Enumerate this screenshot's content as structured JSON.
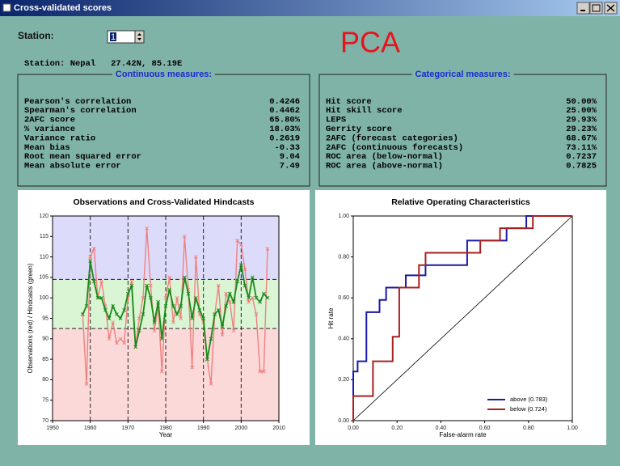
{
  "window": {
    "title": "Cross-validated scores"
  },
  "station": {
    "label": "Station:",
    "value": "1",
    "info": "Station: Nepal   27.42N, 85.19E"
  },
  "overlay": "PCA",
  "continuous": {
    "title": "Continuous measures:",
    "rows": [
      [
        "Pearson's correlation",
        "0.4246"
      ],
      [
        "Spearman's correlation",
        "0.4462"
      ],
      [
        "2AFC score",
        "65.80%"
      ],
      [
        "% variance",
        "18.03%"
      ],
      [
        "Variance ratio",
        "0.2619"
      ],
      [
        "Mean bias",
        "-0.33"
      ],
      [
        "Root mean squared error",
        "9.04"
      ],
      [
        "Mean absolute error",
        "7.49"
      ]
    ]
  },
  "categorical": {
    "title": "Categorical measures:",
    "rows": [
      [
        "Hit score",
        "50.00%"
      ],
      [
        "Hit skill score",
        "25.00%"
      ],
      [
        "LEPS",
        "29.93%"
      ],
      [
        "Gerrity score",
        "29.23%"
      ],
      [
        "2AFC (forecast categories)",
        "68.67%"
      ],
      [
        "2AFC (continuous forecasts)",
        "73.11%"
      ],
      [
        "ROC area (below-normal)",
        "0.7237"
      ],
      [
        "ROC area (above-normal)",
        "0.7825"
      ]
    ]
  },
  "chart_data": [
    {
      "type": "line",
      "title": "Observations and Cross-Validated Hindcasts",
      "xlabel": "Year",
      "ylabel": "Observations (red) / Hindcasts (green)",
      "x": [
        1958,
        1959,
        1960,
        1961,
        1962,
        1963,
        1964,
        1965,
        1966,
        1967,
        1968,
        1969,
        1970,
        1971,
        1972,
        1973,
        1974,
        1975,
        1976,
        1977,
        1978,
        1979,
        1980,
        1981,
        1982,
        1983,
        1984,
        1985,
        1986,
        1987,
        1988,
        1989,
        1990,
        1991,
        1992,
        1993,
        1994,
        1995,
        1996,
        1997,
        1998,
        1999,
        2000,
        2001,
        2002,
        2003,
        2004,
        2005,
        2006,
        2007
      ],
      "xlim": [
        1950,
        2010
      ],
      "xticks": [
        1950,
        1960,
        1970,
        1980,
        1990,
        2000,
        2010
      ],
      "ylim": [
        70,
        120
      ],
      "yticks": [
        70,
        75,
        80,
        85,
        90,
        95,
        100,
        105,
        110,
        115,
        120
      ],
      "thresholds": [
        92.5,
        104.5
      ],
      "band_colors": [
        "#fcd9d9",
        "#d9f5d3",
        "#dcdcfa"
      ],
      "vgrid": true,
      "series": [
        {
          "color": "#f08080",
          "marker": true,
          "values": [
            96,
            79,
            110,
            112,
            100,
            104,
            98,
            90,
            94,
            89,
            90,
            89,
            100,
            104,
            88,
            95,
            100,
            117,
            103,
            92,
            98,
            82,
            100,
            105,
            94,
            100,
            95,
            115,
            102,
            83,
            110,
            96,
            94,
            85,
            79,
            96,
            103,
            91,
            101,
            99,
            92,
            114,
            113,
            107,
            99,
            100,
            96,
            82,
            82,
            112
          ]
        },
        {
          "color": "#1a8a1a",
          "marker": true,
          "values": [
            96,
            98,
            109,
            104,
            100,
            100,
            97,
            95,
            98,
            96,
            95,
            97,
            101,
            103,
            88,
            92,
            96,
            103,
            100,
            94,
            99,
            90,
            98,
            102,
            98,
            96,
            98,
            105,
            101,
            95,
            100,
            97,
            95,
            85,
            90,
            96,
            97,
            93,
            98,
            101,
            99,
            104,
            108,
            103,
            100,
            105,
            100,
            99,
            101,
            100
          ]
        }
      ]
    },
    {
      "type": "line",
      "title": "Relative Operating Characteristics",
      "xlabel": "False-alarm rate",
      "ylabel": "Hit rate",
      "xlim": [
        0,
        1
      ],
      "ylim": [
        0,
        1
      ],
      "xticks": [
        {
          "value": 0,
          "label": "0.00"
        },
        {
          "value": 0.2,
          "label": "0.20"
        },
        {
          "value": 0.4,
          "label": "0.40"
        },
        {
          "value": 0.6,
          "label": "0.60"
        },
        {
          "value": 0.8,
          "label": "0.80"
        },
        {
          "value": 1,
          "label": "1.00"
        }
      ],
      "yticks": [
        {
          "value": 0,
          "label": "0.00"
        },
        {
          "value": 0.2,
          "label": "0.20"
        },
        {
          "value": 0.4,
          "label": "0.40"
        },
        {
          "value": 0.6,
          "label": "0.60"
        },
        {
          "value": 0.8,
          "label": "0.80"
        },
        {
          "value": 1,
          "label": "1.00"
        }
      ],
      "diagonal": true,
      "legend": "lower right",
      "series": [
        {
          "name": "above (0.783)",
          "color": "#1a1aa8",
          "x": [
            0,
            0,
            0.02,
            0.02,
            0.06,
            0.06,
            0.12,
            0.12,
            0.15,
            0.15,
            0.24,
            0.24,
            0.33,
            0.33,
            0.52,
            0.52,
            0.7,
            0.7,
            0.79,
            0.79,
            1
          ],
          "values": [
            0,
            0.24,
            0.24,
            0.29,
            0.29,
            0.53,
            0.53,
            0.59,
            0.59,
            0.65,
            0.65,
            0.71,
            0.71,
            0.76,
            0.76,
            0.88,
            0.88,
            0.94,
            0.94,
            1,
            1
          ]
        },
        {
          "name": "below (0.724)",
          "color": "#a82020",
          "x": [
            0,
            0,
            0.09,
            0.09,
            0.18,
            0.18,
            0.21,
            0.21,
            0.3,
            0.3,
            0.33,
            0.33,
            0.58,
            0.58,
            0.67,
            0.67,
            0.82,
            0.82,
            1
          ],
          "values": [
            0,
            0.12,
            0.12,
            0.29,
            0.29,
            0.41,
            0.41,
            0.65,
            0.65,
            0.76,
            0.76,
            0.82,
            0.82,
            0.88,
            0.88,
            0.94,
            0.94,
            1,
            1
          ]
        }
      ]
    }
  ]
}
